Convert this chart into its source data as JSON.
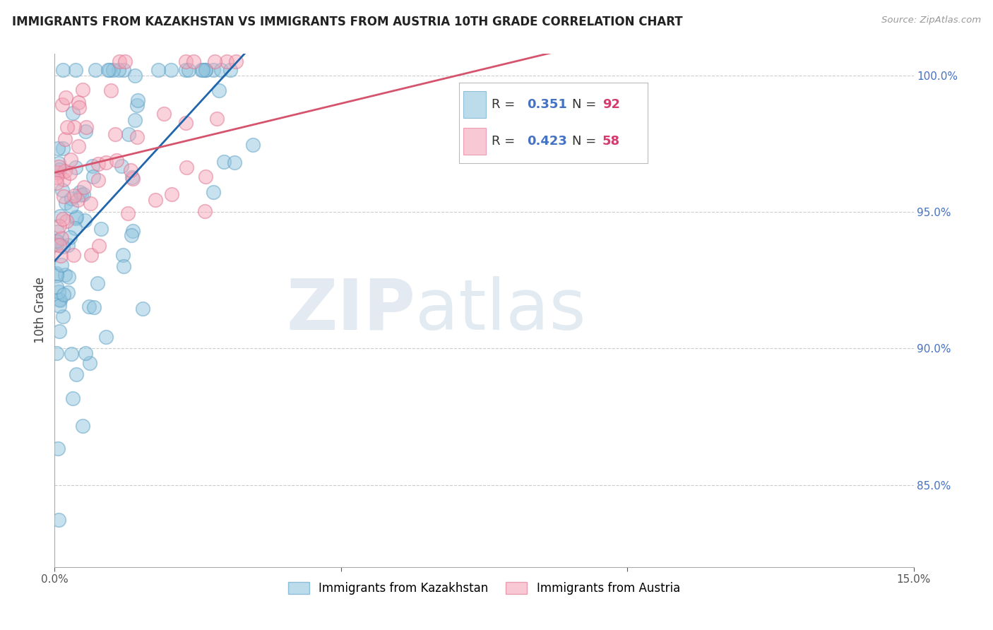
{
  "title": "IMMIGRANTS FROM KAZAKHSTAN VS IMMIGRANTS FROM AUSTRIA 10TH GRADE CORRELATION CHART",
  "source": "Source: ZipAtlas.com",
  "ylabel": "10th Grade",
  "watermark_zip": "ZIP",
  "watermark_atlas": "atlas",
  "legend_r1": "R = ",
  "legend_v1": "0.351",
  "legend_n1_label": "N = ",
  "legend_n1": "92",
  "legend_r2": "R = ",
  "legend_v2": "0.423",
  "legend_n2_label": "N = ",
  "legend_n2": "58",
  "kazakhstan_color": "#92c5de",
  "kazakhstan_edge": "#5a9ec4",
  "austria_color": "#f4a6b8",
  "austria_edge": "#e07090",
  "kazakhstan_line_color": "#2166ac",
  "austria_line_color": "#d6536d",
  "background_color": "#ffffff",
  "grid_color": "#cccccc",
  "xlim": [
    0.0,
    0.15
  ],
  "ylim": [
    0.82,
    1.008
  ],
  "yticks": [
    0.85,
    0.9,
    0.95,
    1.0
  ],
  "ytick_labels": [
    "85.0%",
    "90.0%",
    "95.0%",
    "100.0%"
  ],
  "xtick_labels": [
    "0.0%",
    "",
    "",
    "15.0%"
  ],
  "xticks": [
    0.0,
    0.05,
    0.1,
    0.15
  ],
  "legend_label_kaz": "Immigrants from Kazakhstan",
  "legend_label_aus": "Immigrants from Austria",
  "title_fontsize": 12,
  "tick_fontsize": 11,
  "ylabel_fontsize": 12
}
